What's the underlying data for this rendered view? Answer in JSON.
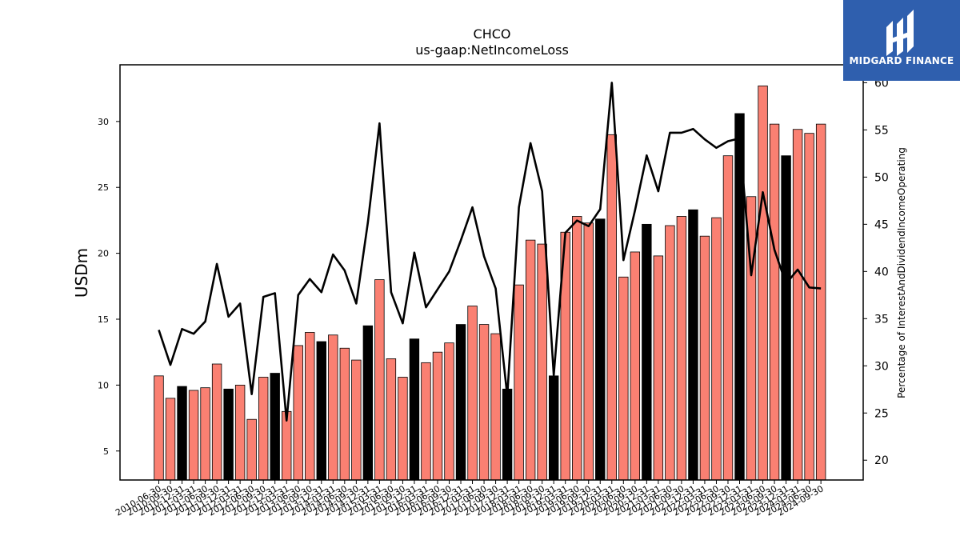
{
  "chart_data": {
    "type": "bar",
    "title": "CHCO",
    "subtitle": "us-gaap:NetIncomeLoss",
    "ylabel": "USDm",
    "y2label": "Percentage of InterestAndDividendIncomeOperating",
    "ylim": [
      2.8,
      34.3
    ],
    "y2lim": [
      17.9,
      61.9
    ],
    "yticks": [
      5,
      10,
      15,
      20,
      25,
      30
    ],
    "y2ticks": [
      20,
      25,
      30,
      35,
      40,
      45,
      50,
      55,
      60
    ],
    "categories": [
      "2010-06-30",
      "2010-09-30",
      "2010-12-31",
      "2011-03-31",
      "2011-06-30",
      "2011-09-30",
      "2011-12-31",
      "2012-03-31",
      "2012-06-30",
      "2012-09-30",
      "2012-12-31",
      "2013-03-31",
      "2013-06-30",
      "2013-09-30",
      "2013-12-31",
      "2014-03-31",
      "2014-06-30",
      "2014-09-30",
      "2014-12-31",
      "2015-03-31",
      "2015-06-30",
      "2015-09-30",
      "2015-12-31",
      "2016-03-31",
      "2016-06-30",
      "2016-09-30",
      "2016-12-31",
      "2017-03-31",
      "2017-06-30",
      "2017-09-30",
      "2017-12-31",
      "2018-03-31",
      "2018-06-30",
      "2018-09-30",
      "2018-12-31",
      "2019-03-31",
      "2019-06-30",
      "2019-09-30",
      "2019-12-31",
      "2020-03-31",
      "2020-06-30",
      "2020-09-30",
      "2020-12-31",
      "2021-03-31",
      "2021-06-30",
      "2021-09-30",
      "2021-12-31",
      "2022-03-31",
      "2022-06-30",
      "2022-09-30",
      "2022-12-31",
      "2023-03-31",
      "2023-06-30",
      "2023-09-30",
      "2023-12-31",
      "2024-03-31",
      "2024-06-30",
      "2024-09-30"
    ],
    "series": [
      {
        "kind": "bar",
        "axis": "left",
        "values": [
          10.7,
          9.0,
          9.9,
          9.6,
          9.8,
          11.6,
          9.7,
          10.0,
          7.4,
          10.6,
          10.9,
          8.0,
          13.0,
          14.0,
          13.3,
          13.8,
          12.8,
          11.9,
          14.5,
          18.0,
          12.0,
          10.6,
          13.5,
          11.7,
          12.5,
          13.2,
          14.6,
          16.0,
          14.6,
          13.9,
          9.7,
          17.6,
          21.0,
          20.7,
          10.7,
          21.6,
          22.8,
          22.3,
          22.6,
          29.0,
          18.2,
          20.1,
          22.2,
          19.8,
          22.1,
          22.8,
          23.3,
          21.3,
          22.7,
          27.4,
          30.6,
          24.3,
          32.7,
          29.8,
          27.4,
          29.4,
          29.1,
          29.8
        ],
        "colors": [
          "#fa8072",
          "#fa8072",
          "#000000",
          "#fa8072",
          "#fa8072",
          "#fa8072",
          "#000000",
          "#fa8072",
          "#fa8072",
          "#fa8072",
          "#000000",
          "#fa8072",
          "#fa8072",
          "#fa8072",
          "#000000",
          "#fa8072",
          "#fa8072",
          "#fa8072",
          "#000000",
          "#fa8072",
          "#fa8072",
          "#fa8072",
          "#000000",
          "#fa8072",
          "#fa8072",
          "#fa8072",
          "#000000",
          "#fa8072",
          "#fa8072",
          "#fa8072",
          "#000000",
          "#fa8072",
          "#fa8072",
          "#fa8072",
          "#000000",
          "#fa8072",
          "#fa8072",
          "#fa8072",
          "#000000",
          "#fa8072",
          "#fa8072",
          "#fa8072",
          "#000000",
          "#fa8072",
          "#fa8072",
          "#fa8072",
          "#000000",
          "#fa8072",
          "#fa8072",
          "#fa8072",
          "#000000",
          "#fa8072",
          "#fa8072",
          "#fa8072",
          "#000000",
          "#fa8072",
          "#fa8072",
          "#fa8072"
        ]
      },
      {
        "kind": "line",
        "axis": "right",
        "color": "#000000",
        "values": [
          33.8,
          30.1,
          33.9,
          33.4,
          34.7,
          40.8,
          35.2,
          36.6,
          27.0,
          37.3,
          37.7,
          24.2,
          37.5,
          39.2,
          37.8,
          41.8,
          40.1,
          36.6,
          45.2,
          55.7,
          37.8,
          34.5,
          42.0,
          36.2,
          38.1,
          40.0,
          43.3,
          46.8,
          41.6,
          38.2,
          26.8,
          46.8,
          53.6,
          48.5,
          29.0,
          44.1,
          45.4,
          44.8,
          46.6,
          60.0,
          41.2,
          46.5,
          52.3,
          48.5,
          54.7,
          54.7,
          55.1,
          54.0,
          53.1,
          53.8,
          54.1,
          39.6,
          48.4,
          42.3,
          38.7,
          40.2,
          38.3,
          38.2
        ]
      }
    ]
  },
  "logo": {
    "brand": "MIDGARD FINANCE",
    "color": "#2f5fae"
  }
}
